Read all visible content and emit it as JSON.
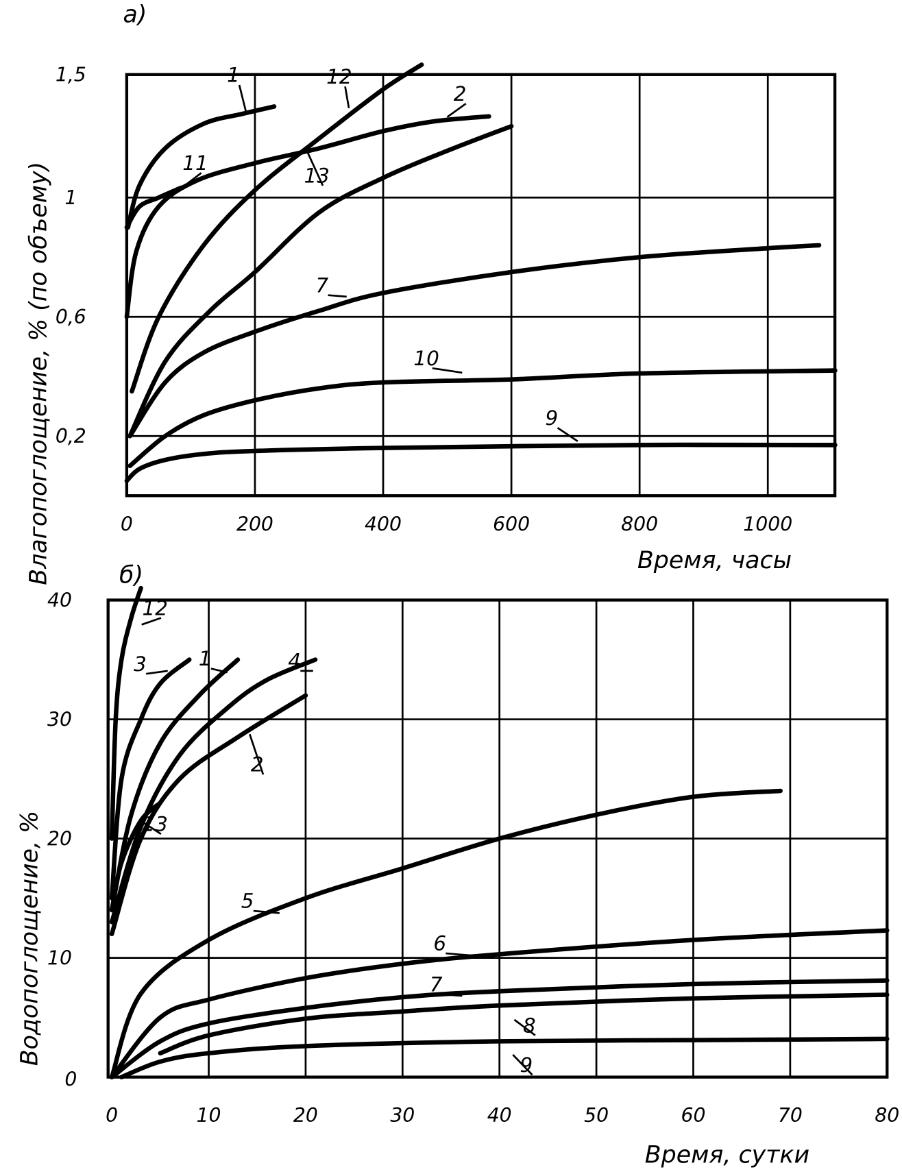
{
  "chart_data": [
    {
      "type": "line",
      "panel_label": "а)",
      "title": "",
      "xlabel": "Время, часы",
      "ylabel": "Влагопоглощение, % (по объему)",
      "xlim": [
        0,
        1105
      ],
      "ylim": [
        0,
        1.5
      ],
      "x_ticks": [
        {
          "v": 0,
          "label": "0"
        },
        {
          "v": 200,
          "label": "200"
        },
        {
          "v": 400,
          "label": "400"
        },
        {
          "v": 600,
          "label": "600"
        },
        {
          "v": 800,
          "label": "800"
        },
        {
          "v": 1000,
          "label": "1000"
        }
      ],
      "y_ticks": [
        {
          "v": 0.2,
          "label": "0,2"
        },
        {
          "v": 0.6,
          "label": "0,6"
        },
        {
          "v": 1,
          "label": "1"
        },
        {
          "v": 1.5,
          "label": "1,5"
        }
      ],
      "grid": true,
      "series": [
        {
          "name": "1",
          "points": [
            [
              2,
              0.9
            ],
            [
              20,
              1.05
            ],
            [
              60,
              1.2
            ],
            [
              120,
              1.3
            ],
            [
              180,
              1.34
            ],
            [
              230,
              1.37
            ]
          ]
        },
        {
          "name": "11",
          "points": [
            [
              0,
              0.9
            ],
            [
              20,
              0.97
            ],
            [
              50,
              1.0
            ],
            [
              85,
              1.04
            ]
          ]
        },
        {
          "name": "2",
          "points": [
            [
              0,
              0.6
            ],
            [
              15,
              0.82
            ],
            [
              50,
              0.97
            ],
            [
              110,
              1.07
            ],
            [
              200,
              1.14
            ],
            [
              300,
              1.2
            ],
            [
              400,
              1.27
            ],
            [
              480,
              1.31
            ],
            [
              565,
              1.33
            ]
          ]
        },
        {
          "name": "12",
          "points": [
            [
              8,
              0.35
            ],
            [
              50,
              0.6
            ],
            [
              120,
              0.84
            ],
            [
              200,
              1.03
            ],
            [
              300,
              1.24
            ],
            [
              400,
              1.44
            ],
            [
              460,
              1.54
            ]
          ]
        },
        {
          "name": "13",
          "points": [
            [
              5,
              0.2
            ],
            [
              60,
              0.45
            ],
            [
              130,
              0.62
            ],
            [
              200,
              0.75
            ],
            [
              300,
              0.95
            ],
            [
              400,
              1.08
            ],
            [
              500,
              1.19
            ],
            [
              600,
              1.29
            ]
          ]
        },
        {
          "name": "7",
          "points": [
            [
              5,
              0.2
            ],
            [
              60,
              0.38
            ],
            [
              120,
              0.48
            ],
            [
              200,
              0.55
            ],
            [
              300,
              0.62
            ],
            [
              400,
              0.68
            ],
            [
              600,
              0.75
            ],
            [
              800,
              0.8
            ],
            [
              1000,
              0.83
            ],
            [
              1080,
              0.84
            ]
          ]
        },
        {
          "name": "10",
          "points": [
            [
              5,
              0.1
            ],
            [
              60,
              0.2
            ],
            [
              120,
              0.27
            ],
            [
              200,
              0.32
            ],
            [
              300,
              0.36
            ],
            [
              400,
              0.38
            ],
            [
              600,
              0.39
            ],
            [
              800,
              0.41
            ],
            [
              1105,
              0.42
            ]
          ]
        },
        {
          "name": "9",
          "points": [
            [
              0,
              0.05
            ],
            [
              20,
              0.09
            ],
            [
              60,
              0.12
            ],
            [
              120,
              0.14
            ],
            [
              200,
              0.15
            ],
            [
              400,
              0.16
            ],
            [
              800,
              0.17
            ],
            [
              1105,
              0.17
            ]
          ]
        }
      ]
    },
    {
      "type": "line",
      "panel_label": "б)",
      "title": "",
      "xlabel": "Время, сутки",
      "ylabel": "Водопоглощение, %",
      "xlim": [
        0,
        80
      ],
      "ylim": [
        0,
        40
      ],
      "x_ticks": [
        {
          "v": 0,
          "label": "0"
        },
        {
          "v": 10,
          "label": "10"
        },
        {
          "v": 20,
          "label": "20"
        },
        {
          "v": 30,
          "label": "30"
        },
        {
          "v": 40,
          "label": "40"
        },
        {
          "v": 50,
          "label": "50"
        },
        {
          "v": 60,
          "label": "60"
        },
        {
          "v": 70,
          "label": "70"
        },
        {
          "v": 80,
          "label": "80"
        }
      ],
      "y_ticks": [
        {
          "v": 10,
          "label": "10"
        },
        {
          "v": 20,
          "label": "20"
        },
        {
          "v": 30,
          "label": "30"
        },
        {
          "v": 40,
          "label": "40"
        }
      ],
      "grid": true,
      "series": [
        {
          "name": "12",
          "points": [
            [
              0,
              20
            ],
            [
              0.4,
              30
            ],
            [
              1,
              35
            ],
            [
              2,
              38.5
            ],
            [
              3,
              41
            ]
          ]
        },
        {
          "name": "3",
          "points": [
            [
              0,
              15
            ],
            [
              1,
              25
            ],
            [
              3,
              30
            ],
            [
              5,
              33
            ],
            [
              8,
              35
            ]
          ]
        },
        {
          "name": "1",
          "points": [
            [
              0,
              14
            ],
            [
              2,
              22
            ],
            [
              5,
              28
            ],
            [
              9,
              32
            ],
            [
              13,
              35
            ]
          ]
        },
        {
          "name": "4",
          "points": [
            [
              0,
              13
            ],
            [
              3,
              21
            ],
            [
              7,
              27
            ],
            [
              12,
              31
            ],
            [
              16,
              33.3
            ],
            [
              21,
              35
            ]
          ]
        },
        {
          "name": "2",
          "points": [
            [
              0,
              12
            ],
            [
              3,
              20
            ],
            [
              7,
              25
            ],
            [
              13,
              28.5
            ],
            [
              20,
              32
            ]
          ]
        },
        {
          "name": "13",
          "points": [
            [
              0,
              14
            ],
            [
              1,
              18
            ],
            [
              3,
              21.5
            ],
            [
              5,
              23
            ]
          ]
        },
        {
          "name": "5",
          "points": [
            [
              0,
              0
            ],
            [
              3,
              7
            ],
            [
              10,
              11.5
            ],
            [
              20,
              15
            ],
            [
              30,
              17.5
            ],
            [
              40,
              20
            ],
            [
              50,
              22
            ],
            [
              60,
              23.5
            ],
            [
              69,
              24
            ]
          ]
        },
        {
          "name": "6",
          "points": [
            [
              0,
              0
            ],
            [
              5,
              5
            ],
            [
              10,
              6.5
            ],
            [
              20,
              8.3
            ],
            [
              30,
              9.5
            ],
            [
              40,
              10.3
            ],
            [
              60,
              11.5
            ],
            [
              80,
              12.3
            ]
          ]
        },
        {
          "name": "7",
          "points": [
            [
              0,
              0
            ],
            [
              5,
              3
            ],
            [
              10,
              4.5
            ],
            [
              20,
              5.8
            ],
            [
              30,
              6.7
            ],
            [
              40,
              7.2
            ],
            [
              60,
              7.8
            ],
            [
              80,
              8.1
            ]
          ]
        },
        {
          "name": "8",
          "points": [
            [
              5,
              2
            ],
            [
              10,
              3.5
            ],
            [
              20,
              4.9
            ],
            [
              30,
              5.5
            ],
            [
              40,
              6
            ],
            [
              60,
              6.6
            ],
            [
              80,
              6.9
            ]
          ]
        },
        {
          "name": "9",
          "points": [
            [
              1,
              0
            ],
            [
              5,
              1.3
            ],
            [
              10,
              2
            ],
            [
              20,
              2.6
            ],
            [
              40,
              3
            ],
            [
              60,
              3.1
            ],
            [
              80,
              3.2
            ]
          ]
        }
      ]
    }
  ]
}
